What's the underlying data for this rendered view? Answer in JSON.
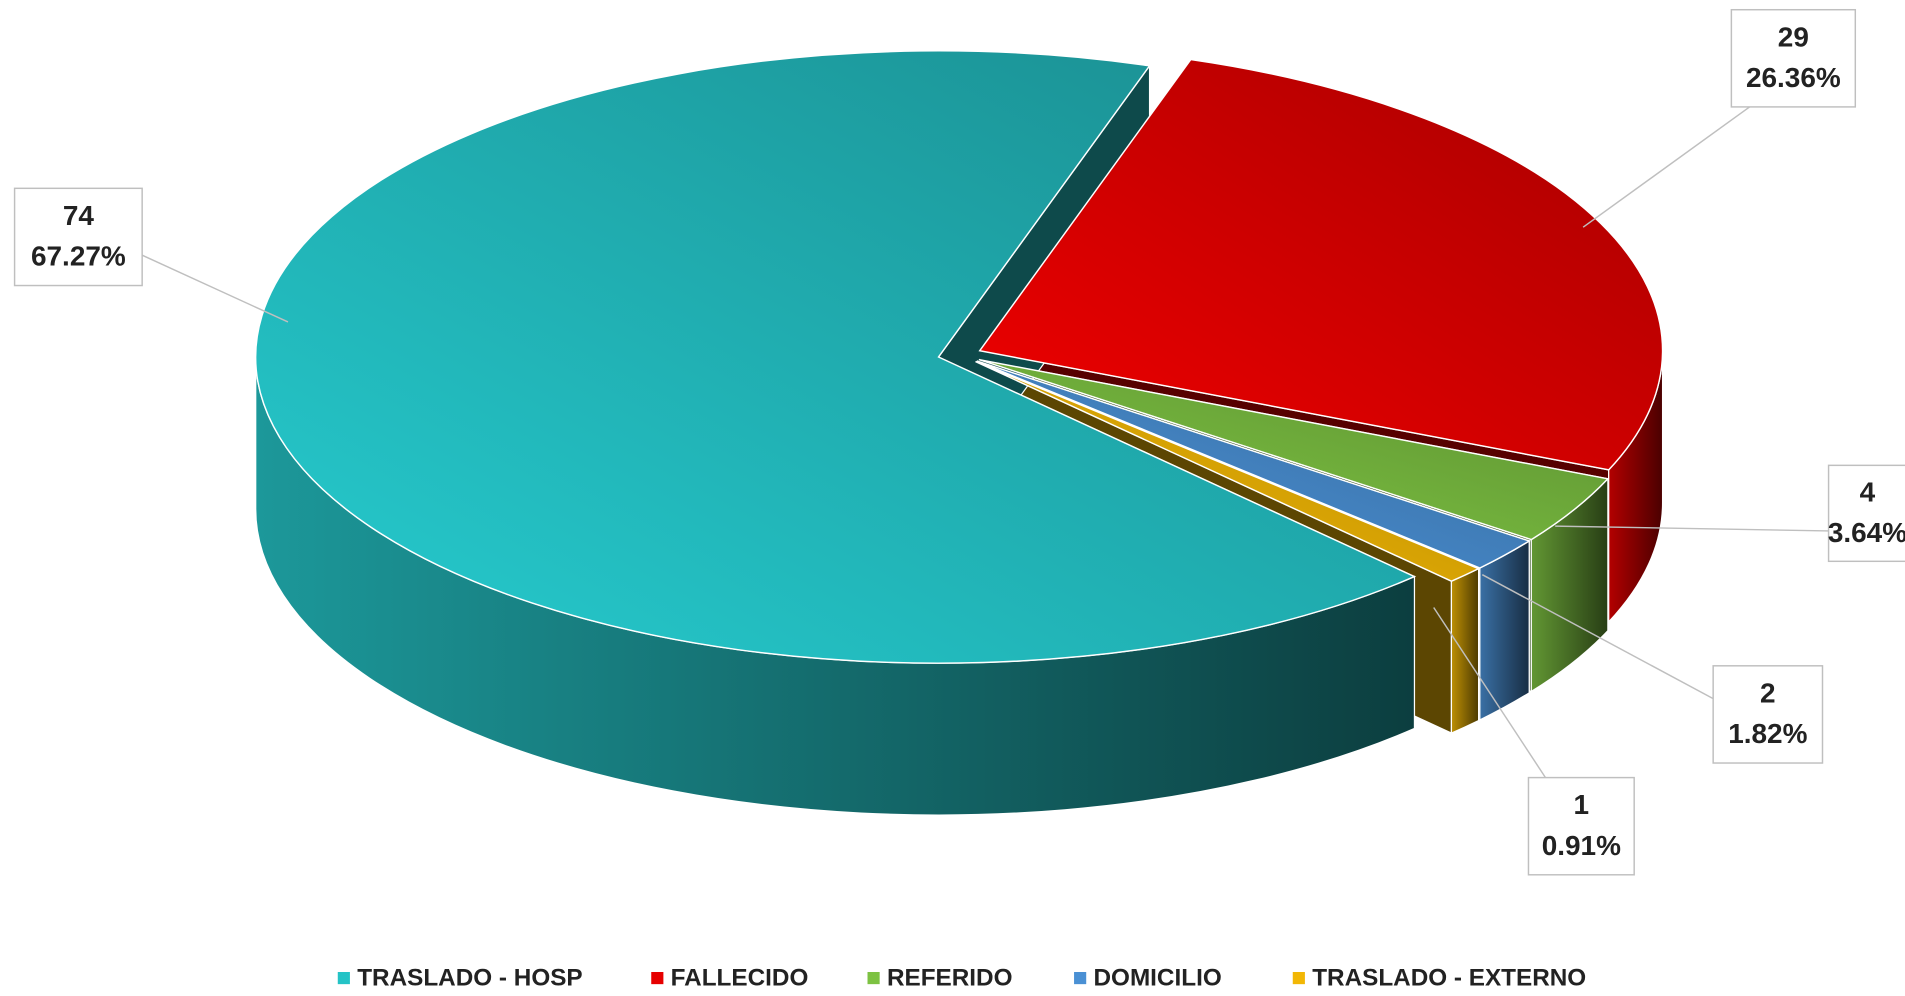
{
  "chart_data": {
    "type": "pie3d",
    "categories": [
      "FALLECIDO",
      "REFERIDO",
      "DOMICILIO",
      "TRASLADO - EXTERNO",
      "TRASLADO - HOSP"
    ],
    "values": [
      29,
      4,
      2,
      1,
      74
    ],
    "percent_labels": [
      "26.36%",
      "3.64%",
      "1.82%",
      "0.91%",
      "67.27%"
    ],
    "colors": [
      "#e60000",
      "#7dc242",
      "#4a90d4",
      "#f2b705",
      "#24c3c6"
    ],
    "legend_order": [
      4,
      0,
      1,
      2,
      3
    ],
    "legend": "bottom"
  }
}
